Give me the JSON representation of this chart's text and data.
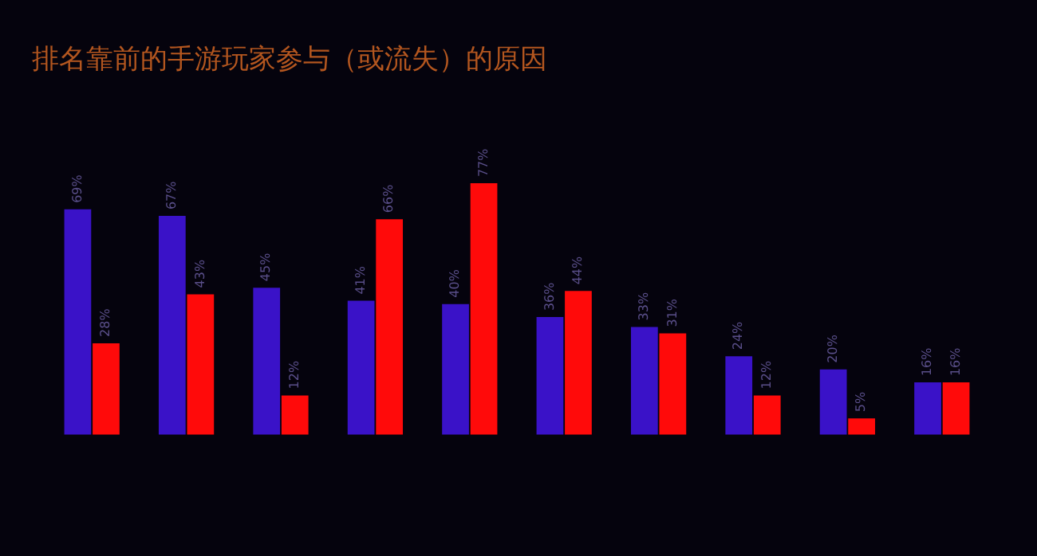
{
  "chart_data": {
    "type": "bar",
    "title": "排名靠前的手游玩家参与（或流失）的原因",
    "categories": [
      null,
      null,
      null,
      null,
      null,
      null,
      null,
      null,
      null,
      null
    ],
    "series": [
      {
        "color": "#3a12c8",
        "values": [
          69,
          67,
          45,
          41,
          40,
          36,
          33,
          24,
          20,
          16
        ],
        "value_labels": [
          "69%",
          "67%",
          "45%",
          "41%",
          "40%",
          "36%",
          "33%",
          "24%",
          "20%",
          "16%"
        ]
      },
      {
        "color": "#ff0a0a",
        "values": [
          28,
          43,
          12,
          66,
          77,
          44,
          31,
          12,
          5,
          16
        ],
        "value_labels": [
          "28%",
          "43%",
          "12%",
          "66%",
          "77%",
          "44%",
          "31%",
          "12%",
          "5%",
          "16%"
        ]
      }
    ],
    "grid": false,
    "legend": false
  }
}
